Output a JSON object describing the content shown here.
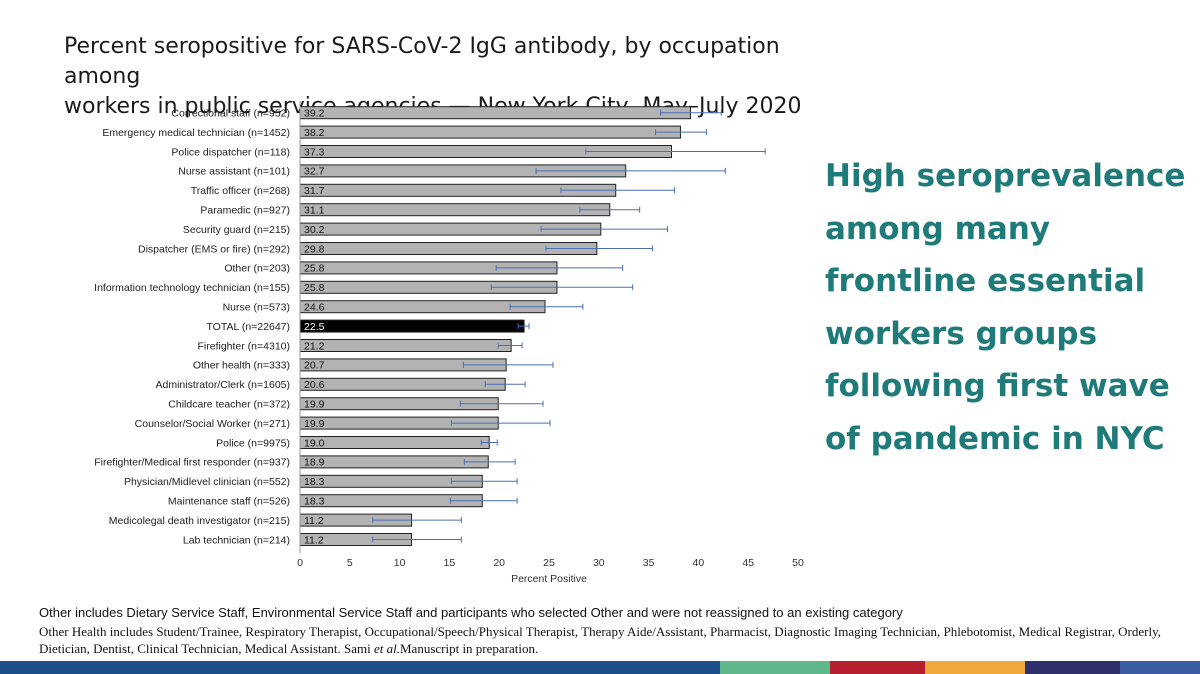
{
  "slide": {
    "title_line1": "Percent seropositive for SARS-CoV-2 IgG antibody, by occupation among",
    "title_line2": "workers in public service agencies — New York City, May–July 2020",
    "callout_lines": [
      "High seroprevalence",
      "among many",
      "frontline essential",
      "workers groups",
      "following first wave",
      "of pandemic in NYC"
    ],
    "callout_color": "#1f7a7a",
    "footnote_1": "Other includes Dietary Service Staff, Environmental Service Staff and participants who selected Other and were not reassigned to an existing category",
    "footnote_2_main": "Other Health includes Student/Trainee, Respiratory Therapist, Occupational/Speech/Physical Therapist, Therapy Aide/Assistant, Pharmacist, Diagnostic Imaging Technician, Phlebotomist, Medical Registrar, Orderly, Dietician, Dentist, Clinical Technician, Medical Assistant. Sami ",
    "footnote_2_italic": "et al.",
    "footnote_2_tail": "Manuscript in preparation.",
    "bottom_bar_colors": [
      "#1f4e8c",
      "#1f4e8c",
      "#5fb88a",
      "#b51f2e",
      "#f2a93b",
      "#2f2f6b",
      "#3b5ba5"
    ]
  },
  "chart_data": {
    "type": "bar",
    "orientation": "horizontal",
    "xlabel": "Percent Positive",
    "ylabel": "",
    "xlim": [
      0,
      50
    ],
    "xticks": [
      0,
      5,
      10,
      15,
      20,
      25,
      30,
      35,
      40,
      45,
      50
    ],
    "grid": false,
    "bar_color": "#b3b3b3",
    "highlight_color": "#000000",
    "error_bar_color": "#4a6fb5",
    "categories": [
      "Correctional staff (n=952)",
      "Emergency medical technician (n=1452)",
      "Police dispatcher (n=118)",
      "Nurse assistant (n=101)",
      "Traffic officer (n=268)",
      "Paramedic (n=927)",
      "Security guard (n=215)",
      "Dispatcher (EMS or fire) (n=292)",
      "Other (n=203)",
      "Information technology technician (n=155)",
      "Nurse (n=573)",
      "TOTAL (n=22647)",
      "Firefighter (n=4310)",
      "Other health (n=333)",
      "Administrator/Clerk (n=1605)",
      "Childcare teacher (n=372)",
      "Counselor/Social Worker (n=271)",
      "Police (n=9975)",
      "Firefighter/Medical first responder (n=937)",
      "Physician/Midlevel clinician (n=552)",
      "Maintenance staff (n=526)",
      "Medicolegal death investigator (n=215)",
      "Lab technician (n=214)"
    ],
    "values": [
      39.2,
      38.2,
      37.3,
      32.7,
      31.7,
      31.1,
      30.2,
      29.8,
      25.8,
      25.8,
      24.6,
      22.5,
      21.2,
      20.7,
      20.6,
      19.9,
      19.9,
      19.0,
      18.9,
      18.3,
      18.3,
      11.2,
      11.2
    ],
    "value_labels": [
      "39.2",
      "38.2",
      "37.3",
      "32.7",
      "31.7",
      "31.1",
      "30.2",
      "29.8",
      "25.8",
      "25.8",
      "24.6",
      "22.5",
      "21.2",
      "20.7",
      "20.6",
      "19.9",
      "19.9",
      "19.0",
      "18.9",
      "18.3",
      "18.3",
      "11.2",
      "11.2"
    ],
    "ci_lower": [
      36.2,
      35.7,
      28.7,
      23.7,
      26.2,
      28.1,
      24.2,
      24.7,
      19.7,
      19.2,
      21.1,
      21.9,
      19.9,
      16.4,
      18.6,
      16.1,
      15.2,
      18.2,
      16.5,
      15.2,
      15.1,
      7.3,
      7.3
    ],
    "ci_upper": [
      42.3,
      40.8,
      46.7,
      42.7,
      37.6,
      34.1,
      36.9,
      35.4,
      32.4,
      33.4,
      28.4,
      23.0,
      22.3,
      25.4,
      22.6,
      24.4,
      25.1,
      19.8,
      21.6,
      21.8,
      21.8,
      16.2,
      16.2
    ],
    "highlight_index": 11
  }
}
